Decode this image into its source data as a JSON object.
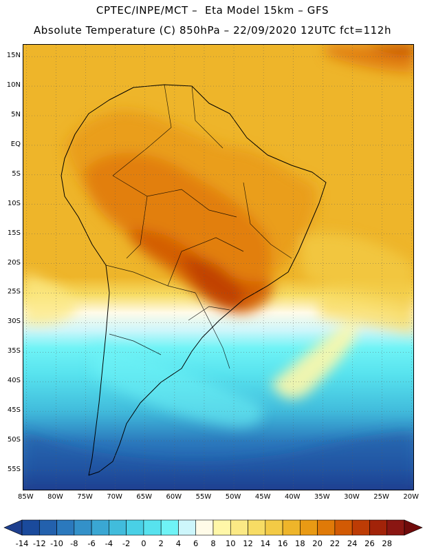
{
  "header": {
    "line1": "CPTEC/INPE/MCT –  Eta Model 15km – GFS",
    "line2": "Absolute Temperature (C) 850hPa – 22/09/2020 12UTC fct=112h"
  },
  "map": {
    "region": "South America",
    "lon_range": [
      -85.5,
      -19.5
    ],
    "lat_range": [
      -58.5,
      17
    ],
    "lat_labels": [
      "15N",
      "10N",
      "5N",
      "EQ",
      "5S",
      "10S",
      "15S",
      "20S",
      "25S",
      "30S",
      "35S",
      "40S",
      "45S",
      "50S",
      "55S"
    ],
    "lon_labels": [
      "85W",
      "80W",
      "75W",
      "70W",
      "65W",
      "60W",
      "55W",
      "50W",
      "45W",
      "40W",
      "35W",
      "30W",
      "25W",
      "20W"
    ],
    "grid": "dotted",
    "field": "850 hPa absolute temperature, shaded by color scale"
  },
  "colorbar": {
    "labels": [
      "-14",
      "-12",
      "-10",
      "-8",
      "-6",
      "-4",
      "-2",
      "0",
      "2",
      "4",
      "6",
      "8",
      "10",
      "12",
      "14",
      "16",
      "18",
      "20",
      "22",
      "24",
      "26",
      "28"
    ],
    "colors": [
      "#1e3f8e",
      "#1a4a9c",
      "#2361ad",
      "#2b79bd",
      "#3391c9",
      "#3aa7d3",
      "#41bcdc",
      "#49d0e6",
      "#57e2ee",
      "#6ff3f6",
      "#cdf6fb",
      "#fffbe8",
      "#fff7a8",
      "#fbe985",
      "#f7dc64",
      "#f3ca45",
      "#eeb52a",
      "#e99a14",
      "#e07a08",
      "#d25a04",
      "#bd3c05",
      "#a22309",
      "#8a1612",
      "#700b0b"
    ]
  }
}
